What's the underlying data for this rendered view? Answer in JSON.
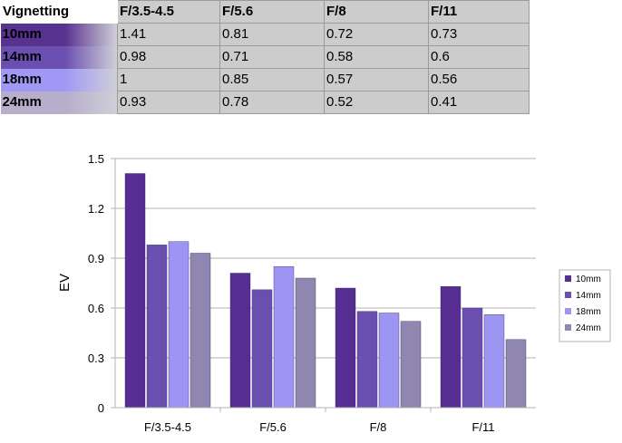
{
  "table": {
    "corner_label": "Vignetting",
    "columns": [
      "F/3.5-4.5",
      "F/5.6",
      "F/8",
      "F/11"
    ],
    "rows": [
      {
        "label": "10mm",
        "color": "#58328f",
        "values": [
          "1.41",
          "0.81",
          "0.72",
          "0.73"
        ]
      },
      {
        "label": "14mm",
        "color": "#6b4fb0",
        "values": [
          "0.98",
          "0.71",
          "0.58",
          "0.6"
        ]
      },
      {
        "label": "18mm",
        "color": "#9f99f5",
        "values": [
          "1",
          "0.85",
          "0.57",
          "0.56"
        ]
      },
      {
        "label": "24mm",
        "color": "#b6aecb",
        "values": [
          "0.93",
          "0.78",
          "0.52",
          "0.41"
        ]
      }
    ]
  },
  "chart_data": {
    "type": "bar",
    "categories": [
      "F/3.5-4.5",
      "F/5.6",
      "F/8",
      "F/11"
    ],
    "series": [
      {
        "name": "10mm",
        "color": "#562d91",
        "values": [
          1.41,
          0.81,
          0.72,
          0.73
        ]
      },
      {
        "name": "14mm",
        "color": "#6a4fae",
        "values": [
          0.98,
          0.71,
          0.58,
          0.6
        ]
      },
      {
        "name": "18mm",
        "color": "#9c96f2",
        "values": [
          1,
          0.85,
          0.57,
          0.56
        ]
      },
      {
        "name": "24mm",
        "color": "#8f87b0",
        "values": [
          0.93,
          0.78,
          0.52,
          0.41
        ]
      }
    ],
    "title": "",
    "xlabel": "",
    "ylabel": "EV",
    "ylim": [
      0,
      1.5
    ],
    "yticks": [
      "0",
      "0.3",
      "0.6",
      "0.9",
      "1.2",
      "1.5"
    ],
    "grid": true,
    "legend_position": "right"
  }
}
